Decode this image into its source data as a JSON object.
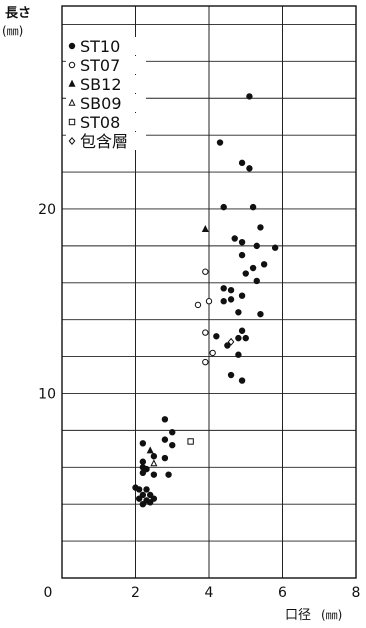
{
  "chart_data": {
    "type": "scatter",
    "title": "",
    "ylabel": "長さ",
    "ylabel_unit": "(㎜)",
    "xlabel": "口径",
    "xlabel_unit": "(㎜)",
    "xlim": [
      0,
      8
    ],
    "ylim": [
      0,
      31
    ],
    "x_ticks": [
      0,
      2,
      4,
      6,
      8
    ],
    "y_ticks": [
      10,
      20
    ],
    "x_tick_labels": [
      "0",
      "2",
      "4",
      "6",
      "8"
    ],
    "y_tick_labels": [
      "10",
      "20"
    ],
    "grid": true,
    "grid_x_step": 2,
    "grid_y_step": 2,
    "legend_position": "top-left",
    "series": [
      {
        "name": "ST10",
        "marker": "filled-circle",
        "points": [
          [
            5.1,
            26.1
          ],
          [
            4.3,
            23.6
          ],
          [
            4.9,
            22.5
          ],
          [
            5.1,
            22.2
          ],
          [
            4.4,
            20.1
          ],
          [
            5.2,
            20.1
          ],
          [
            5.4,
            19.0
          ],
          [
            4.7,
            18.4
          ],
          [
            4.9,
            18.2
          ],
          [
            5.3,
            18.0
          ],
          [
            5.8,
            17.9
          ],
          [
            4.9,
            17.5
          ],
          [
            5.2,
            16.8
          ],
          [
            5.5,
            17.0
          ],
          [
            5.0,
            16.5
          ],
          [
            5.3,
            16.1
          ],
          [
            4.4,
            15.7
          ],
          [
            4.6,
            15.6
          ],
          [
            4.9,
            15.3
          ],
          [
            4.4,
            15.0
          ],
          [
            4.6,
            15.1
          ],
          [
            4.8,
            14.4
          ],
          [
            5.4,
            14.3
          ],
          [
            4.9,
            13.4
          ],
          [
            4.2,
            13.1
          ],
          [
            4.5,
            12.6
          ],
          [
            4.8,
            13.0
          ],
          [
            5.0,
            13.0
          ],
          [
            4.8,
            12.1
          ],
          [
            4.6,
            11.0
          ],
          [
            4.9,
            10.7
          ],
          [
            2.8,
            8.6
          ],
          [
            3.0,
            7.9
          ],
          [
            2.8,
            7.5
          ],
          [
            2.2,
            7.3
          ],
          [
            3.0,
            7.2
          ],
          [
            2.5,
            6.6
          ],
          [
            2.8,
            6.5
          ],
          [
            2.2,
            6.3
          ],
          [
            2.2,
            6.0
          ],
          [
            2.3,
            5.9
          ],
          [
            2.2,
            5.7
          ],
          [
            2.9,
            5.6
          ],
          [
            2.5,
            5.6
          ],
          [
            2.0,
            4.9
          ],
          [
            2.1,
            4.8
          ],
          [
            2.3,
            4.8
          ],
          [
            2.2,
            4.5
          ],
          [
            2.4,
            4.5
          ],
          [
            2.1,
            4.3
          ],
          [
            2.5,
            4.3
          ],
          [
            2.3,
            4.2
          ],
          [
            2.2,
            4.0
          ],
          [
            2.4,
            4.1
          ]
        ]
      },
      {
        "name": "ST07",
        "marker": "open-circle",
        "points": [
          [
            3.9,
            16.6
          ],
          [
            4.0,
            15.0
          ],
          [
            3.7,
            14.8
          ],
          [
            3.9,
            13.3
          ],
          [
            4.1,
            12.2
          ],
          [
            3.9,
            11.7
          ]
        ]
      },
      {
        "name": "SB12",
        "marker": "filled-triangle",
        "points": [
          [
            3.9,
            18.9
          ],
          [
            2.4,
            6.9
          ]
        ]
      },
      {
        "name": "SB09",
        "marker": "open-triangle",
        "points": [
          [
            2.5,
            6.2
          ]
        ]
      },
      {
        "name": "ST08",
        "marker": "open-square",
        "points": [
          [
            3.5,
            7.4
          ]
        ]
      },
      {
        "name": "包含層",
        "marker": "open-diamond",
        "points": [
          [
            4.6,
            12.8
          ]
        ]
      }
    ]
  }
}
